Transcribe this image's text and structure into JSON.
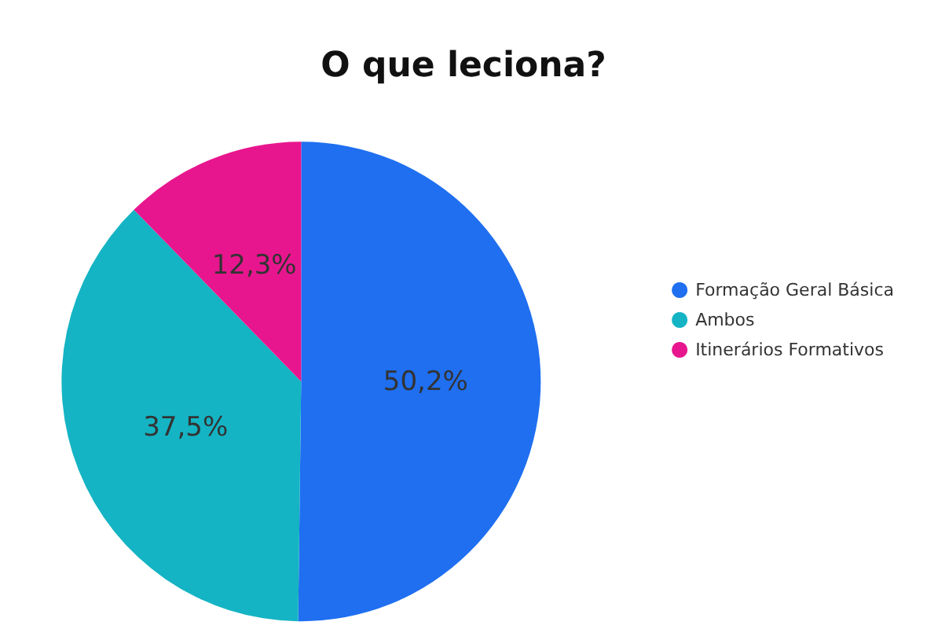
{
  "chart_data": {
    "type": "pie",
    "title": "O que leciona?",
    "categories": [
      "Formação Geral Básica",
      "Ambos",
      "Itinerários Formativos"
    ],
    "values": [
      50.2,
      37.5,
      12.3
    ],
    "colors": [
      "#1f6ff0",
      "#14b4c4",
      "#e8168e"
    ],
    "value_labels": [
      "50,2%",
      "37,5%",
      "12,3%"
    ],
    "legend": "right"
  }
}
